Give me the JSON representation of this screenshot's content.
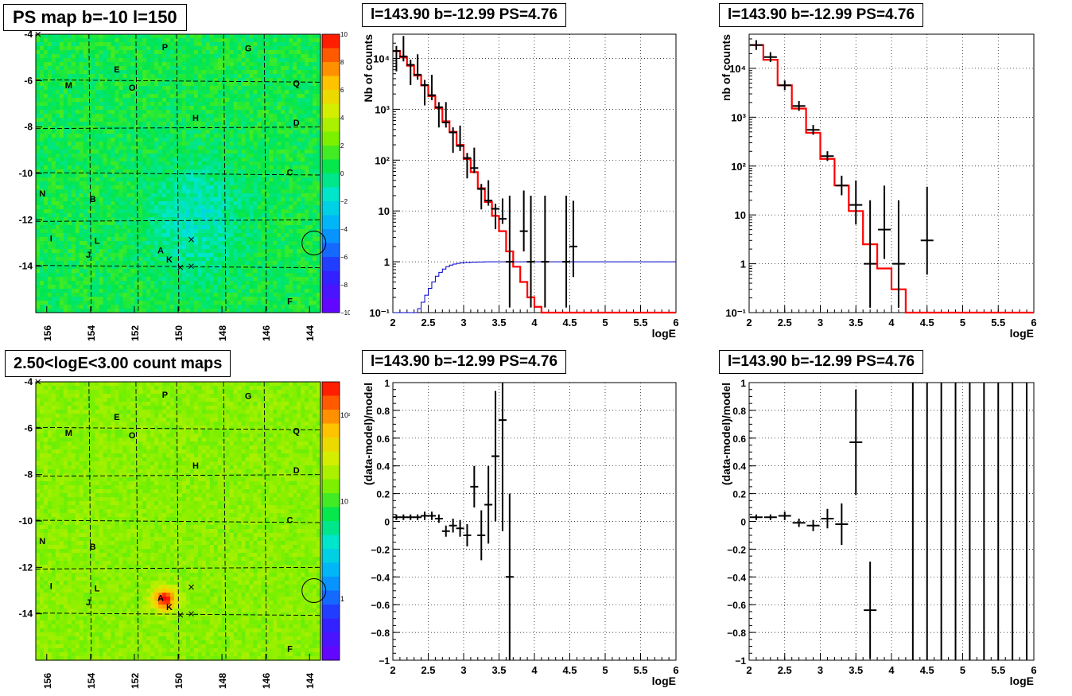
{
  "panels": {
    "map_top": {
      "title": "PS map b=-10 l=150"
    },
    "map_bottom": {
      "title": "2.50<logE<3.00 count maps"
    },
    "spec_mid": {
      "title": "l=143.90 b=-12.99 PS=4.76"
    },
    "spec_right": {
      "title": "l=143.90 b=-12.99 PS=4.76"
    },
    "resid_mid": {
      "title": "l=143.90 b=-12.99 PS=4.76"
    },
    "resid_right": {
      "title": "l=143.90 b=-12.99 PS=4.76"
    }
  },
  "colors": {
    "data": "#000000",
    "model": "#ff0000",
    "ratio_curve": "#0000cc",
    "grid": "#000000"
  },
  "chart_data": [
    {
      "id": "ps_map",
      "type": "heatmap",
      "title": "PS map b=-10 l=150",
      "x_ticks": [
        "156",
        "154",
        "152",
        "150",
        "148",
        "146",
        "144"
      ],
      "y_ticks": [
        "-4",
        "-6",
        "-8",
        "-10",
        "-12",
        "-14"
      ],
      "xlim": [
        156.5,
        143.5
      ],
      "ylim": [
        -16,
        -4
      ],
      "colorbar": {
        "min": -10,
        "max": 10,
        "ticks": [
          "10",
          "8",
          "6",
          "4",
          "2",
          "0",
          "−2",
          "−4",
          "−6",
          "−8",
          "−10"
        ]
      },
      "source_labels": [
        {
          "label": "P",
          "l": 150.6,
          "b": -4.55
        },
        {
          "label": "G",
          "l": 146.8,
          "b": -4.6
        },
        {
          "label": "E",
          "l": 152.8,
          "b": -5.5
        },
        {
          "label": "M",
          "l": 155.0,
          "b": -6.2
        },
        {
          "label": "O",
          "l": 152.1,
          "b": -6.3
        },
        {
          "label": "Q",
          "l": 144.6,
          "b": -6.1
        },
        {
          "label": "H",
          "l": 149.2,
          "b": -7.6
        },
        {
          "label": "D",
          "l": 144.6,
          "b": -7.8
        },
        {
          "label": "C",
          "l": 144.9,
          "b": -9.95
        },
        {
          "label": "N",
          "l": 156.2,
          "b": -10.85
        },
        {
          "label": "B",
          "l": 153.9,
          "b": -11.1
        },
        {
          "label": "I",
          "l": 155.8,
          "b": -12.8
        },
        {
          "label": "L",
          "l": 153.7,
          "b": -12.9
        },
        {
          "label": "A",
          "l": 150.8,
          "b": -13.3
        },
        {
          "label": "J",
          "l": 154.1,
          "b": -13.5
        },
        {
          "label": "K",
          "l": 150.4,
          "b": -13.7
        },
        {
          "label": "F",
          "l": 144.9,
          "b": -15.5
        }
      ],
      "crosses": [
        [
          156.4,
          -4.0
        ],
        [
          149.4,
          -12.85
        ],
        [
          149.9,
          -14.05
        ],
        [
          149.4,
          -14.0
        ]
      ],
      "circle": {
        "l": 143.8,
        "b": -13.0
      }
    },
    {
      "id": "count_map",
      "type": "heatmap",
      "title": "2.50<logE<3.00 count maps",
      "x_ticks": [
        "156",
        "154",
        "152",
        "150",
        "148",
        "146",
        "144"
      ],
      "y_ticks": [
        "-4",
        "-6",
        "-8",
        "-10",
        "-12",
        "-14"
      ],
      "xlim": [
        156.5,
        143.5
      ],
      "ylim": [
        -16,
        -4
      ],
      "colorbar": {
        "scale": "log",
        "ticks": [
          "10²",
          "10",
          "1"
        ]
      },
      "hotspot": {
        "label": "A",
        "l": 150.7,
        "b": -13.3
      }
    },
    {
      "id": "spectrum_1",
      "type": "line",
      "title": "l=143.90 b=-12.99 PS=4.76",
      "xlabel": "logE",
      "ylabel": "Nb of counts",
      "xlim": [
        2,
        6
      ],
      "ylim": [
        0.1,
        30000
      ],
      "log_y": true,
      "grid": true,
      "x_ticks": [
        "2",
        "2.5",
        "3",
        "3.5",
        "4",
        "4.5",
        "5",
        "5.5",
        "6"
      ],
      "y_ticks": [
        "10⁻¹",
        "1",
        "10",
        "10²",
        "10³",
        "10⁴"
      ],
      "data": {
        "x": [
          2.05,
          2.15,
          2.25,
          2.35,
          2.45,
          2.55,
          2.65,
          2.75,
          2.85,
          2.95,
          3.05,
          3.15,
          3.25,
          3.35,
          3.45,
          3.55,
          3.65,
          3.85,
          3.95,
          4.15,
          4.45,
          4.55
        ],
        "y": [
          14000,
          11000,
          7500,
          4800,
          3000,
          1900,
          1100,
          550,
          350,
          190,
          110,
          70,
          27,
          16,
          11,
          7,
          1,
          4,
          1,
          1,
          1,
          2
        ],
        "err_lo": [
          0.4,
          0.1,
          0.4,
          0.1,
          0.4,
          0.1,
          0.4,
          0.1,
          0.4,
          0.1,
          0.4,
          0.1,
          0.4,
          0.1,
          0.4,
          0.1,
          0.9,
          0.4,
          0.9,
          0.9,
          0.9,
          0.6
        ],
        "err_hi": [
          0.1,
          0.4,
          0.1,
          0.4,
          0.1,
          0.4,
          0.1,
          0.4,
          0.1,
          0.4,
          0.1,
          0.4,
          0.1,
          0.4,
          0.1,
          0.4,
          1.3,
          0.8,
          1.3,
          1.3,
          1.3,
          0.9
        ]
      },
      "model": {
        "edges": [
          2.0,
          2.1,
          2.2,
          2.3,
          2.4,
          2.5,
          2.6,
          2.7,
          2.8,
          2.9,
          3.0,
          3.1,
          3.2,
          3.3,
          3.4,
          3.5,
          3.6,
          3.7,
          3.8,
          3.9,
          4.0,
          4.1,
          4.2,
          6.0
        ],
        "values": [
          14000,
          10500,
          7200,
          4600,
          2950,
          1800,
          1050,
          580,
          360,
          200,
          105,
          58,
          28,
          15,
          8,
          4,
          1.6,
          0.8,
          0.4,
          0.2,
          0.13,
          0.1,
          0.1
        ]
      },
      "ratio_curve": {
        "edges": [
          2.0,
          2.2,
          2.35,
          2.4,
          2.45,
          2.5,
          2.55,
          2.6,
          2.65,
          2.7,
          2.75,
          2.8,
          2.85,
          2.9,
          2.95,
          3.0,
          3.1,
          3.2,
          3.3,
          3.4,
          3.5,
          3.6,
          6.0
        ],
        "values": [
          0.1,
          0.1,
          0.12,
          0.16,
          0.22,
          0.3,
          0.4,
          0.52,
          0.62,
          0.72,
          0.8,
          0.86,
          0.9,
          0.93,
          0.95,
          0.97,
          0.98,
          0.99,
          1,
          1,
          1,
          1
        ]
      }
    },
    {
      "id": "spectrum_2",
      "type": "line",
      "title": "l=143.90 b=-12.99 PS=4.76",
      "xlabel": "logE",
      "ylabel": "nb of counts",
      "xlim": [
        2,
        6
      ],
      "ylim": [
        0.1,
        50000
      ],
      "log_y": true,
      "grid": true,
      "x_ticks": [
        "2",
        "2.5",
        "3",
        "3.5",
        "4",
        "4.5",
        "5",
        "5.5",
        "6"
      ],
      "y_ticks": [
        "10⁻¹",
        "1",
        "10",
        "10²",
        "10³",
        "10⁴"
      ],
      "data": {
        "x": [
          2.1,
          2.3,
          2.5,
          2.7,
          2.9,
          3.1,
          3.3,
          3.5,
          3.7,
          3.9,
          4.1,
          4.5
        ],
        "y": [
          30000,
          17000,
          4500,
          1700,
          550,
          160,
          40,
          16,
          1,
          5,
          1,
          3
        ],
        "err_lo": [
          0.1,
          0.1,
          0.1,
          0.1,
          0.1,
          0.1,
          0.2,
          0.4,
          0.9,
          0.6,
          0.9,
          0.7
        ],
        "err_hi": [
          0.1,
          0.1,
          0.1,
          0.1,
          0.1,
          0.1,
          0.2,
          0.5,
          1.3,
          0.9,
          1.3,
          1.1
        ]
      },
      "model": {
        "edges": [
          2.0,
          2.2,
          2.4,
          2.6,
          2.8,
          3.0,
          3.2,
          3.4,
          3.6,
          3.8,
          4.0,
          4.2,
          6.0
        ],
        "values": [
          30000,
          15000,
          4500,
          1500,
          480,
          140,
          40,
          12,
          2.5,
          0.8,
          0.3,
          0.1
        ]
      }
    },
    {
      "id": "residual_1",
      "type": "scatter",
      "title": "l=143.90 b=-12.99 PS=4.76",
      "xlabel": "logE",
      "ylabel": "(data-model)/model",
      "xlim": [
        2,
        6
      ],
      "ylim": [
        -1,
        1
      ],
      "grid": true,
      "x_ticks": [
        "2",
        "2.5",
        "3",
        "3.5",
        "4",
        "4.5",
        "5",
        "5.5",
        "6"
      ],
      "y_ticks": [
        "−1",
        "−0.8",
        "−0.6",
        "−0.4",
        "−0.2",
        "0",
        "0.2",
        "0.4",
        "0.6",
        "0.8",
        "1"
      ],
      "x": [
        2.05,
        2.15,
        2.25,
        2.35,
        2.45,
        2.55,
        2.65,
        2.75,
        2.85,
        2.95,
        3.05,
        3.15,
        3.25,
        3.35,
        3.45,
        3.55,
        3.65
      ],
      "y": [
        0.03,
        0.03,
        0.03,
        0.03,
        0.04,
        0.04,
        0.02,
        -0.07,
        -0.03,
        -0.05,
        -0.1,
        0.25,
        -0.1,
        0.12,
        0.47,
        0.73,
        -0.4
      ],
      "err": [
        0.02,
        0.02,
        0.02,
        0.02,
        0.03,
        0.03,
        0.03,
        0.04,
        0.05,
        0.06,
        0.08,
        0.15,
        0.18,
        0.28,
        0.47,
        0.8,
        0.6
      ]
    },
    {
      "id": "residual_2",
      "type": "scatter",
      "title": "l=143.90 b=-12.99 PS=4.76",
      "xlabel": "logE",
      "ylabel": "(data-model)/model",
      "xlim": [
        2,
        6
      ],
      "ylim": [
        -1,
        1
      ],
      "grid": true,
      "x_ticks": [
        "2",
        "2.5",
        "3",
        "3.5",
        "4",
        "4.5",
        "5",
        "5.5",
        "6"
      ],
      "y_ticks": [
        "−1",
        "−0.8",
        "−0.6",
        "−0.4",
        "−0.2",
        "0",
        "0.2",
        "0.4",
        "0.6",
        "0.8",
        "1"
      ],
      "x": [
        2.1,
        2.3,
        2.5,
        2.7,
        2.9,
        3.1,
        3.3,
        3.5,
        3.7
      ],
      "y": [
        0.03,
        0.03,
        0.04,
        -0.01,
        -0.03,
        0.02,
        -0.02,
        0.57,
        -0.64
      ],
      "err": [
        0.02,
        0.02,
        0.03,
        0.03,
        0.04,
        0.07,
        0.15,
        0.38,
        0.35
      ],
      "vertical_lines_x": [
        4.3,
        4.5,
        4.7,
        4.9,
        5.1,
        5.3,
        5.5,
        5.7,
        5.9
      ]
    }
  ]
}
